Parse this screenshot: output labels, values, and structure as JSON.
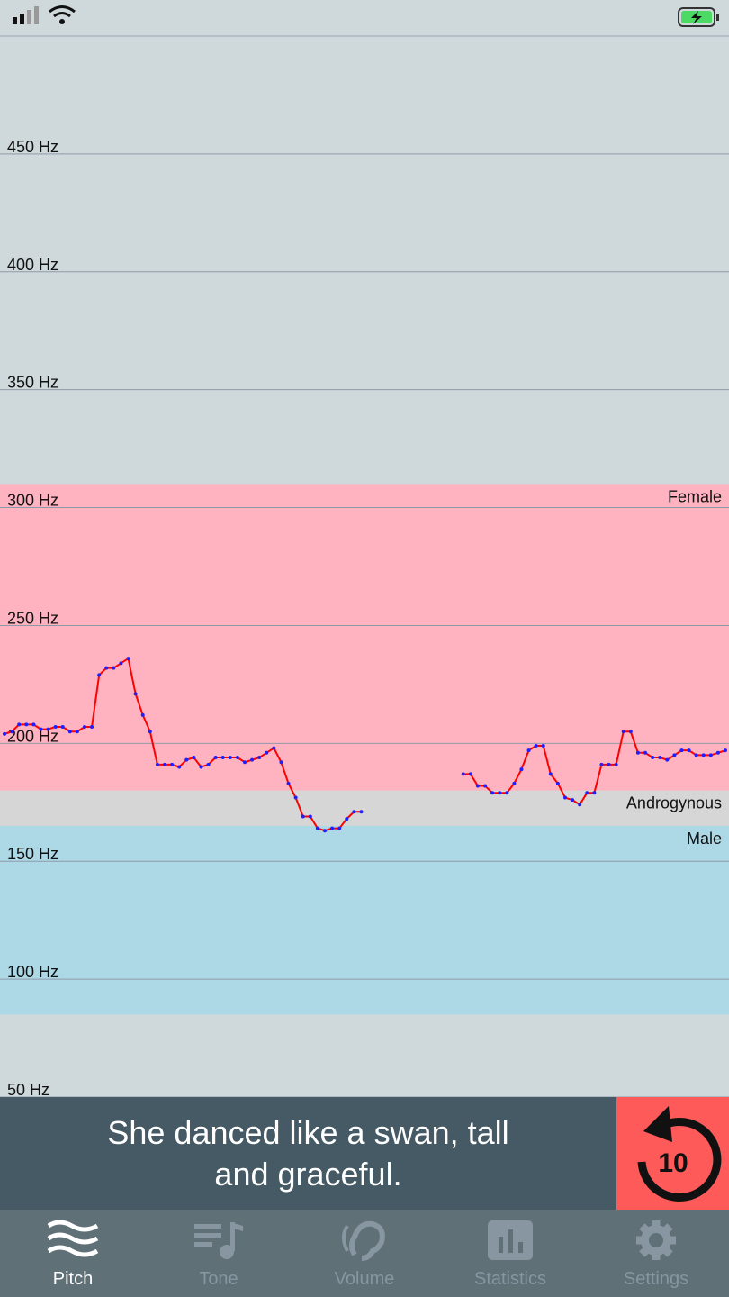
{
  "chart_data": {
    "type": "line",
    "ylim": [
      50,
      500
    ],
    "yticks": [
      {
        "value": 50,
        "label": "50 Hz"
      },
      {
        "value": 100,
        "label": "100 Hz"
      },
      {
        "value": 150,
        "label": "150 Hz"
      },
      {
        "value": 200,
        "label": "200 Hz"
      },
      {
        "value": 250,
        "label": "250 Hz"
      },
      {
        "value": 300,
        "label": "300 Hz"
      },
      {
        "value": 350,
        "label": "350 Hz"
      },
      {
        "value": 400,
        "label": "400 Hz"
      },
      {
        "value": 450,
        "label": "450 Hz"
      }
    ],
    "grid": true,
    "bands": [
      {
        "label": "Female",
        "from": 180,
        "to": 310,
        "color": "#ffb3c0"
      },
      {
        "label": "Androgynous",
        "from": 165,
        "to": 180,
        "color": "#d6d6d6"
      },
      {
        "label": "Male",
        "from": 85,
        "to": 165,
        "color": "#add8e6"
      }
    ],
    "series": [
      {
        "color": "#ff0000",
        "marker_color": "#2020ff",
        "values": [
          204,
          205,
          208,
          208,
          208,
          206,
          206,
          207,
          207,
          205,
          205,
          207,
          207,
          229,
          232,
          232,
          234,
          236,
          221,
          212,
          205,
          191,
          191,
          191,
          190,
          193,
          194,
          190,
          191,
          194,
          194,
          194,
          194,
          192,
          193,
          194,
          196,
          198,
          192,
          183,
          177,
          169,
          169,
          164,
          163,
          164,
          164,
          168,
          171,
          171,
          null,
          null,
          null,
          null,
          null,
          null,
          null,
          null,
          null,
          null,
          null,
          null,
          null,
          187,
          187,
          182,
          182,
          179,
          179,
          179,
          183,
          189,
          197,
          199,
          199,
          187,
          183,
          177,
          176,
          174,
          179,
          179,
          191,
          191,
          191,
          205,
          205,
          196,
          196,
          194,
          194,
          193,
          195,
          197,
          197,
          195,
          195,
          195,
          196,
          197
        ]
      }
    ]
  },
  "prompt": {
    "text": "She danced like a swan, tall and graceful.",
    "replay_label": "10"
  },
  "tabs": [
    {
      "label": "Pitch",
      "active": true
    },
    {
      "label": "Tone",
      "active": false
    },
    {
      "label": "Volume",
      "active": false
    },
    {
      "label": "Statistics",
      "active": false
    },
    {
      "label": "Settings",
      "active": false
    }
  ]
}
